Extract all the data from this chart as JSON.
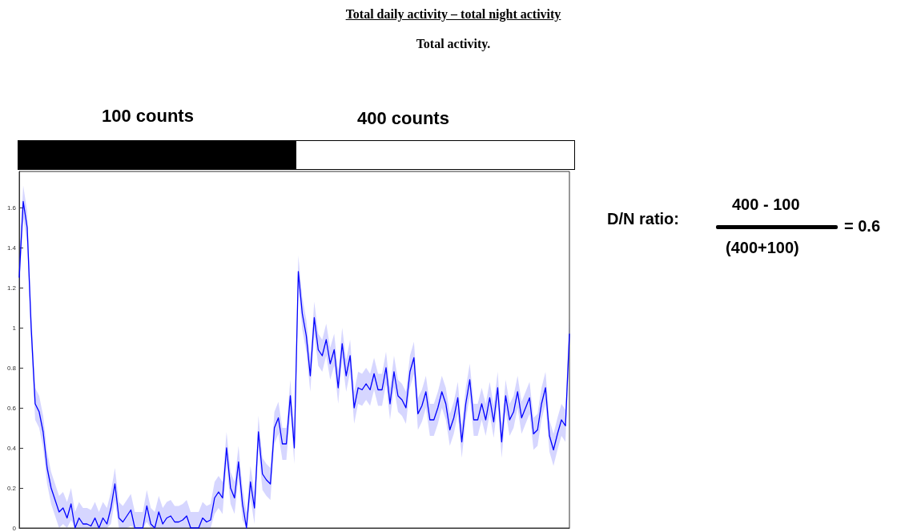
{
  "chart_data": {
    "type": "line",
    "title": "Total daily activity – total night activity",
    "subtitle": "Total activity.",
    "annotations": [
      "100 counts",
      "400 counts",
      "D/N ratio:",
      "400 - 100",
      "(400+100)",
      "= 0.6"
    ],
    "categories": [
      null,
      null,
      null,
      null,
      null,
      null,
      null,
      null,
      null,
      null,
      null,
      null,
      null,
      null,
      null,
      null,
      null,
      null,
      null,
      null,
      null,
      null,
      null,
      null,
      null,
      null,
      null,
      null,
      null,
      null,
      null,
      null,
      null,
      null,
      null,
      null,
      null,
      null,
      null,
      null,
      null,
      null,
      null,
      null,
      null,
      null,
      null,
      null,
      null,
      null,
      null,
      null,
      null,
      null,
      null,
      null,
      null,
      null,
      null,
      null,
      null,
      null,
      null,
      null,
      null,
      null,
      null,
      null,
      null,
      null,
      null,
      null,
      null,
      null,
      null,
      null,
      null,
      null,
      null,
      null,
      null,
      null,
      null,
      null,
      null,
      null,
      null,
      null,
      null,
      null,
      null,
      null,
      null,
      null,
      null,
      null,
      null,
      null,
      null,
      null,
      null,
      null,
      null,
      null,
      null,
      null,
      null,
      null,
      null,
      null,
      null,
      null,
      null,
      null,
      null,
      null,
      null,
      null,
      null,
      null,
      null,
      null,
      null,
      null,
      null,
      null,
      null,
      null,
      null,
      null,
      null,
      null,
      null,
      null,
      null,
      null,
      null,
      null,
      null
    ],
    "series": [
      {
        "color": "#0000ff",
        "values": [
          1.25,
          1.63,
          1.5,
          1.0,
          0.62,
          0.58,
          0.48,
          0.3,
          0.2,
          0.14,
          0.08,
          0.1,
          0.05,
          0.12,
          0.0,
          0.05,
          0.02,
          0.02,
          0.01,
          0.05,
          0.0,
          0.05,
          0.02,
          0.1,
          0.22,
          0.05,
          0.03,
          0.06,
          0.09,
          0.0,
          0.0,
          0.0,
          0.11,
          0.02,
          0.0,
          0.08,
          0.02,
          0.05,
          0.06,
          0.03,
          0.03,
          0.04,
          0.06,
          0.0,
          0.0,
          0.0,
          0.05,
          0.03,
          0.04,
          0.15,
          0.18,
          0.15,
          0.4,
          0.2,
          0.15,
          0.33,
          0.12,
          0.0,
          0.23,
          0.1,
          0.48,
          0.27,
          0.24,
          0.22,
          0.5,
          0.55,
          0.42,
          0.42,
          0.66,
          0.4,
          1.28,
          1.07,
          0.96,
          0.76,
          1.05,
          0.89,
          0.86,
          0.94,
          0.82,
          0.89,
          0.7,
          0.92,
          0.76,
          0.86,
          0.6,
          0.7,
          0.69,
          0.72,
          0.69,
          0.77,
          0.69,
          0.69,
          0.8,
          0.62,
          0.78,
          0.66,
          0.64,
          0.6,
          0.78,
          0.85,
          0.57,
          0.61,
          0.68,
          0.54,
          0.54,
          0.6,
          0.68,
          0.62,
          0.49,
          0.55,
          0.65,
          0.43,
          0.62,
          0.74,
          0.54,
          0.54,
          0.62,
          0.54,
          0.65,
          0.53,
          0.7,
          0.43,
          0.66,
          0.54,
          0.58,
          0.68,
          0.55,
          0.6,
          0.65,
          0.47,
          0.49,
          0.62,
          0.7,
          0.46,
          0.39,
          0.47,
          0.54,
          0.51,
          0.97
        ],
        "upper": [
          1.33,
          1.71,
          1.58,
          1.08,
          0.7,
          0.66,
          0.56,
          0.38,
          0.28,
          0.22,
          0.16,
          0.18,
          0.13,
          0.2,
          0.08,
          0.13,
          0.1,
          0.1,
          0.09,
          0.13,
          0.08,
          0.13,
          0.1,
          0.18,
          0.3,
          0.13,
          0.11,
          0.14,
          0.17,
          0.08,
          0.08,
          0.08,
          0.19,
          0.1,
          0.08,
          0.16,
          0.1,
          0.13,
          0.14,
          0.11,
          0.11,
          0.12,
          0.14,
          0.08,
          0.08,
          0.08,
          0.13,
          0.11,
          0.12,
          0.23,
          0.26,
          0.23,
          0.48,
          0.28,
          0.23,
          0.41,
          0.2,
          0.08,
          0.31,
          0.18,
          0.56,
          0.35,
          0.32,
          0.3,
          0.58,
          0.63,
          0.5,
          0.5,
          0.74,
          0.48,
          1.36,
          1.15,
          1.04,
          0.84,
          1.13,
          0.97,
          0.94,
          1.02,
          0.9,
          0.97,
          0.78,
          1.0,
          0.84,
          0.94,
          0.68,
          0.78,
          0.77,
          0.8,
          0.77,
          0.85,
          0.77,
          0.77,
          0.88,
          0.7,
          0.86,
          0.74,
          0.72,
          0.68,
          0.86,
          0.93,
          0.65,
          0.69,
          0.76,
          0.62,
          0.62,
          0.68,
          0.76,
          0.7,
          0.57,
          0.63,
          0.73,
          0.51,
          0.7,
          0.82,
          0.62,
          0.62,
          0.7,
          0.62,
          0.73,
          0.61,
          0.78,
          0.51,
          0.74,
          0.62,
          0.66,
          0.76,
          0.63,
          0.68,
          0.73,
          0.55,
          0.57,
          0.7,
          0.78,
          0.54,
          0.47,
          0.55,
          0.62,
          0.59,
          1.05
        ],
        "lower": [
          1.17,
          1.55,
          1.42,
          0.92,
          0.54,
          0.5,
          0.4,
          0.22,
          0.12,
          0.06,
          0,
          0.02,
          0,
          0.04,
          0,
          0,
          0,
          0,
          0,
          0,
          0,
          0,
          0,
          0.02,
          0.14,
          0,
          0,
          0,
          0.01,
          0,
          0,
          0,
          0.03,
          0,
          0,
          0,
          0,
          0,
          0,
          0,
          0,
          0,
          0,
          0,
          0,
          0,
          0,
          0,
          0,
          0.07,
          0.1,
          0.07,
          0.32,
          0.12,
          0.07,
          0.25,
          0.04,
          0,
          0.15,
          0.02,
          0.4,
          0.19,
          0.16,
          0.14,
          0.42,
          0.47,
          0.34,
          0.34,
          0.58,
          0.32,
          1.2,
          0.99,
          0.88,
          0.68,
          0.97,
          0.81,
          0.78,
          0.86,
          0.74,
          0.81,
          0.62,
          0.84,
          0.68,
          0.78,
          0.52,
          0.62,
          0.61,
          0.64,
          0.61,
          0.69,
          0.61,
          0.61,
          0.72,
          0.54,
          0.7,
          0.58,
          0.56,
          0.52,
          0.7,
          0.77,
          0.49,
          0.53,
          0.6,
          0.46,
          0.46,
          0.52,
          0.6,
          0.54,
          0.41,
          0.47,
          0.57,
          0.35,
          0.54,
          0.66,
          0.46,
          0.46,
          0.54,
          0.46,
          0.57,
          0.45,
          0.62,
          0.35,
          0.58,
          0.46,
          0.5,
          0.6,
          0.47,
          0.52,
          0.57,
          0.39,
          0.41,
          0.54,
          0.62,
          0.38,
          0.31,
          0.39,
          0.46,
          0.43,
          0.89
        ]
      }
    ],
    "ylim": [
      0,
      1.78
    ],
    "yticks": [
      0,
      0.2,
      0.4,
      0.6,
      0.8,
      1,
      1.2,
      1.4,
      1.6
    ],
    "grid": false,
    "tick_labels": "y"
  }
}
